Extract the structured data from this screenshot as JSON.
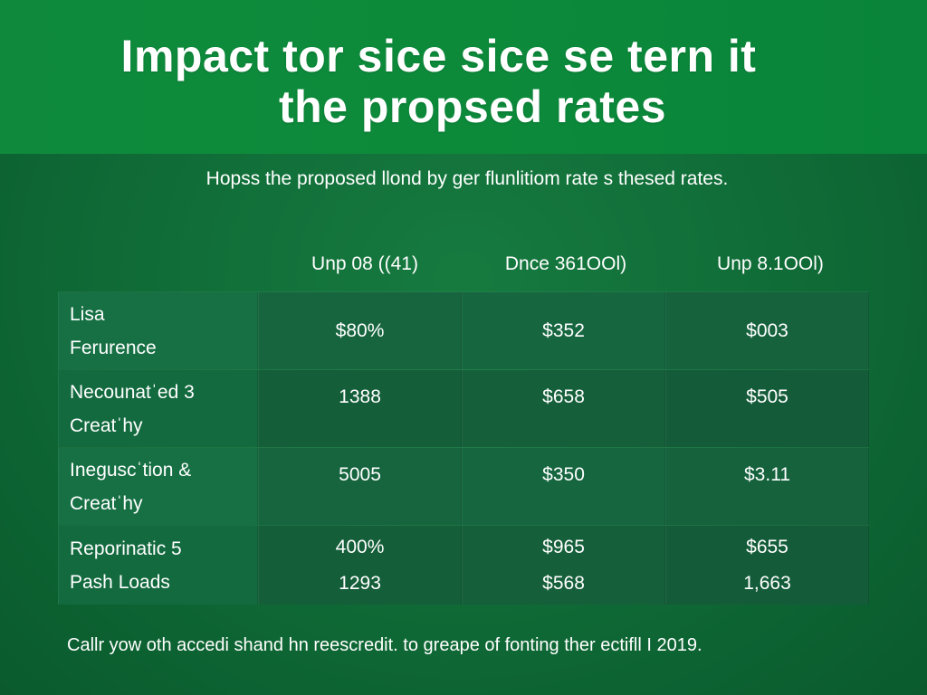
{
  "title": {
    "line1": "Impact tor sice sice se tern it",
    "line2": "the propsed rates"
  },
  "subtitle": "Hopss the proposed llond by ger flunlitiom rate s thesed rates.",
  "columns": [
    "Unp 08 ((41)",
    "Dnce 361OOl)",
    "Unp 8.1OOl)"
  ],
  "rows": [
    {
      "label": [
        "Lisa",
        "Ferurence"
      ],
      "values": [
        [
          "$80%"
        ],
        [
          "$352"
        ],
        [
          "$003"
        ]
      ]
    },
    {
      "label": [
        "Necounatˈed 3",
        "Creatˈhy"
      ],
      "values": [
        [
          "1388"
        ],
        [
          "$658"
        ],
        [
          "$505"
        ]
      ]
    },
    {
      "label": [
        "Ineguscˈtion &",
        "Creatˈhy"
      ],
      "values": [
        [
          "5005"
        ],
        [
          "$350"
        ],
        [
          "$3.11"
        ]
      ]
    },
    {
      "label": [
        "Reporinatic 5",
        "Pash Loads"
      ],
      "values": [
        [
          "400%",
          "1293"
        ],
        [
          "$965",
          "$568"
        ],
        [
          "$655",
          "1,663"
        ]
      ]
    }
  ],
  "footnote": "Callr yow oth accedi shand hn reescredit. to greape of fonting ther ectifll I 2019."
}
